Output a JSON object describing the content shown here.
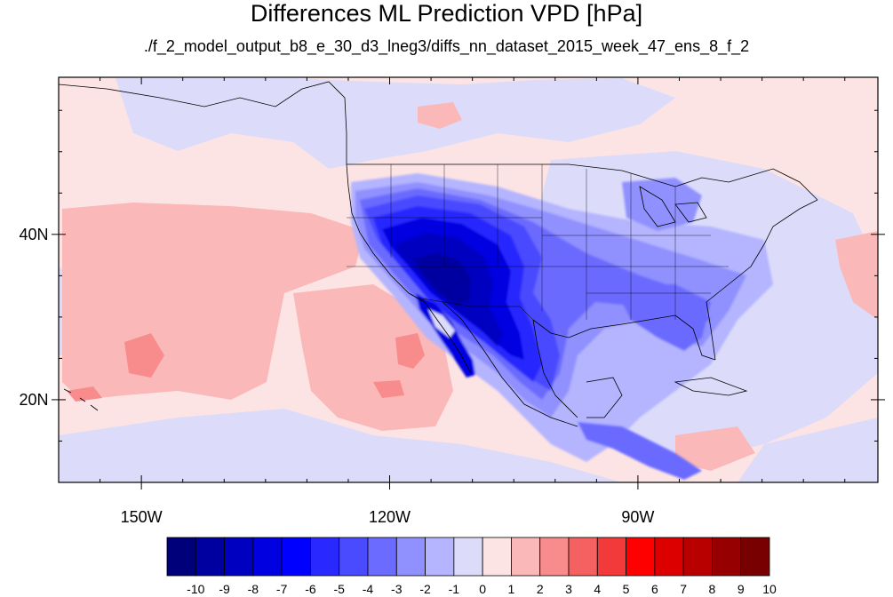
{
  "title": "Differences ML Prediction VPD [hPa]",
  "subtitle": "./f_2_model_output_b8_e_30_d3_lneg3/diffs_nn_dataset_2015_week_47_ens_8_f_2",
  "axes": {
    "x_ticks": [
      {
        "lon": -150,
        "label": "150W"
      },
      {
        "lon": -120,
        "label": "120W"
      },
      {
        "lon": -90,
        "label": "90W"
      }
    ],
    "y_ticks": [
      {
        "lat": 40,
        "label": "40N"
      },
      {
        "lat": 20,
        "label": "20N"
      }
    ]
  },
  "map_extent": {
    "lon_min": -160,
    "lon_max": -61,
    "lat_min": 10,
    "lat_max": 59
  },
  "colorbar": {
    "labels": [
      "-10",
      "-9",
      "-8",
      "-7",
      "-6",
      "-5",
      "-4",
      "-3",
      "-2",
      "-1",
      "0",
      "1",
      "2",
      "3",
      "4",
      "5",
      "6",
      "7",
      "8",
      "9",
      "10"
    ],
    "colors": [
      "#00007a",
      "#0000a0",
      "#0000c0",
      "#0000e0",
      "#0000ff",
      "#2828ff",
      "#4a4aff",
      "#6b6bff",
      "#9090ff",
      "#b4b4ff",
      "#dcdcfa",
      "#fde4e4",
      "#fbb8b8",
      "#f88c8c",
      "#f56060",
      "#f23a3a",
      "#ff0000",
      "#dc0000",
      "#b80000",
      "#960000",
      "#780000"
    ]
  },
  "colors": {
    "background_light_red": "#fde4e4",
    "light_blue": "#dcdcfa",
    "pink": "#fbb8b8",
    "blue_strong": "#0000c0"
  }
}
